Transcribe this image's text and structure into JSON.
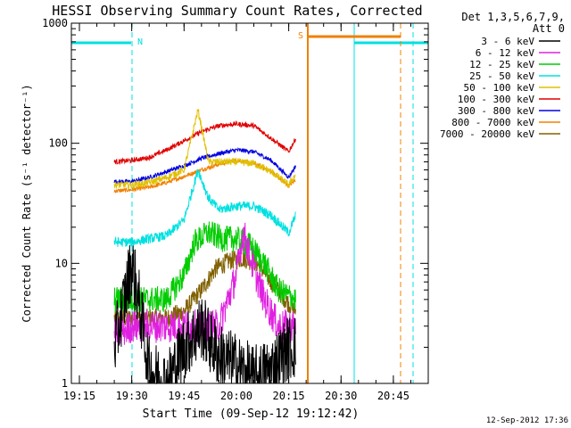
{
  "chart_data": {
    "type": "line",
    "title": "HESSI Observing Summary Count Rates, Corrected",
    "xlabel": "Start Time (09-Sep-12 19:12:42)",
    "ylabel": "Corrected Count Rate (s⁻¹ detector⁻¹)",
    "yscale": "log",
    "ylim": [
      1,
      1000
    ],
    "xlim": [
      "19:12:42",
      "20:55:00"
    ],
    "x_ticks": [
      "19:15",
      "19:30",
      "19:45",
      "20:00",
      "20:15",
      "20:30",
      "20:45"
    ],
    "y_ticks": [
      "1",
      "10",
      "100",
      "1000"
    ],
    "grid": false,
    "legend": {
      "position": "right",
      "header": [
        "Det 1,3,5,6,7,9,",
        "Att 0"
      ]
    },
    "footer": "12-Sep-2012 17:36",
    "series": [
      {
        "name": "3 - 6 keV",
        "color": "#000000",
        "x": [
          "19:25",
          "19:30",
          "19:32",
          "19:35",
          "19:40",
          "19:45",
          "19:50",
          "19:55",
          "20:00",
          "20:05",
          "20:10",
          "20:15",
          "20:17"
        ],
        "y": [
          2,
          10,
          5,
          1.3,
          1,
          2,
          3,
          1.7,
          1.4,
          1.1,
          1.3,
          2,
          2
        ]
      },
      {
        "name": "6 - 12 keV",
        "color": "#e020e0",
        "x": [
          "19:25",
          "19:30",
          "19:35",
          "19:40",
          "19:45",
          "19:50",
          "19:55",
          "20:00",
          "20:02",
          "20:05",
          "20:08",
          "20:12",
          "20:17"
        ],
        "y": [
          2.5,
          3,
          3,
          3,
          3,
          3,
          3,
          8,
          18,
          9,
          5,
          3,
          3
        ]
      },
      {
        "name": "12 - 25 keV",
        "color": "#00cc00",
        "x": [
          "19:25",
          "19:30",
          "19:35",
          "19:40",
          "19:45",
          "19:48",
          "19:52",
          "19:56",
          "20:00",
          "20:04",
          "20:08",
          "20:12",
          "20:17"
        ],
        "y": [
          5,
          5,
          5,
          5,
          8,
          15,
          18,
          16,
          16,
          14,
          10,
          6,
          5
        ]
      },
      {
        "name": "25 - 50 keV",
        "color": "#00e0e0",
        "x": [
          "19:25",
          "19:30",
          "19:35",
          "19:40",
          "19:45",
          "19:49",
          "19:52",
          "19:55",
          "20:00",
          "20:05",
          "20:10",
          "20:15",
          "20:17"
        ],
        "y": [
          15,
          15,
          16,
          17,
          23,
          60,
          35,
          28,
          30,
          30,
          25,
          18,
          25
        ]
      },
      {
        "name": "50 - 100 keV",
        "color": "#e0c000",
        "x": [
          "19:25",
          "19:30",
          "19:35",
          "19:40",
          "19:45",
          "19:49",
          "19:52",
          "19:56",
          "20:00",
          "20:05",
          "20:10",
          "20:15",
          "20:17"
        ],
        "y": [
          45,
          45,
          47,
          52,
          60,
          190,
          70,
          70,
          70,
          68,
          58,
          45,
          55
        ]
      },
      {
        "name": "100 - 300 keV",
        "color": "#e00000",
        "x": [
          "19:25",
          "19:30",
          "19:35",
          "19:40",
          "19:45",
          "19:50",
          "19:55",
          "20:00",
          "20:05",
          "20:10",
          "20:15",
          "20:17"
        ],
        "y": [
          70,
          72,
          76,
          88,
          105,
          125,
          140,
          145,
          140,
          110,
          85,
          110
        ]
      },
      {
        "name": "300 - 800 keV",
        "color": "#0000e0",
        "x": [
          "19:25",
          "19:30",
          "19:35",
          "19:40",
          "19:45",
          "19:50",
          "19:55",
          "20:00",
          "20:05",
          "20:10",
          "20:15",
          "20:17"
        ],
        "y": [
          48,
          48,
          52,
          58,
          65,
          75,
          82,
          88,
          85,
          72,
          52,
          65
        ]
      },
      {
        "name": "800 - 7000 keV",
        "color": "#f08000",
        "x": [
          "19:25",
          "19:30",
          "19:35",
          "19:40",
          "19:45",
          "19:50",
          "19:55",
          "20:00",
          "20:05",
          "20:10",
          "20:15",
          "20:17"
        ],
        "y": [
          40,
          41,
          43,
          47,
          53,
          60,
          67,
          72,
          68,
          58,
          44,
          50
        ]
      },
      {
        "name": "7000 - 20000 keV",
        "color": "#806000",
        "x": [
          "19:25",
          "19:30",
          "19:35",
          "19:40",
          "19:45",
          "19:50",
          "19:54",
          "19:58",
          "20:02",
          "20:06",
          "20:10",
          "20:14",
          "20:17"
        ],
        "y": [
          3.5,
          3.5,
          3.5,
          3.5,
          4,
          6,
          9,
          10.5,
          11,
          10,
          7,
          5,
          4
        ]
      }
    ],
    "annotations": [
      {
        "label": "N",
        "color": "#00e0e0",
        "x": "19:30"
      },
      {
        "label": "S",
        "color": "#f08000",
        "x": "20:17"
      }
    ]
  }
}
